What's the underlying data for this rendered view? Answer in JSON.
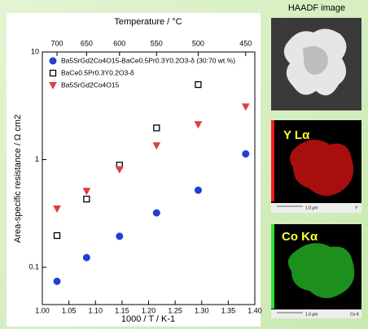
{
  "chart_data": {
    "type": "scatter",
    "xlabel": "1000 / T / K-1",
    "ylabel": "Area-specific resistance / Ω cm2",
    "x2label": "Temperature / °C",
    "x": [
      1.0276,
      1.0833,
      1.1453,
      1.215,
      1.2934,
      1.3828
    ],
    "series": [
      {
        "name": "Ba5SrGd2Co4O15-BaCe0.5Pr0.3Y0.2O3-δ (30:70 wt.%)",
        "color": "#1f3fd6",
        "marker": "circle",
        "filled": true,
        "values": [
          0.074,
          0.123,
          0.194,
          0.32,
          0.52,
          1.13
        ]
      },
      {
        "name": "BaCe0.5Pr0.3Y0.2O3-δ",
        "color": "#000000",
        "marker": "square",
        "filled": false,
        "values": [
          0.197,
          0.43,
          0.89,
          1.97,
          4.98,
          null
        ]
      },
      {
        "name": "Ba5SrGd2Co4O15",
        "color": "#d9413f",
        "marker": "triangle",
        "filled": true,
        "values": [
          0.35,
          0.51,
          0.81,
          1.35,
          2.12,
          3.1
        ]
      }
    ],
    "xlim": [
      1.0,
      1.4
    ],
    "xticks": [
      {
        "value": 1.0,
        "label": "1.00"
      },
      {
        "value": 1.05,
        "label": "1.05"
      },
      {
        "value": 1.1,
        "label": "1.10"
      },
      {
        "value": 1.15,
        "label": "1.15"
      },
      {
        "value": 1.2,
        "label": "1.20"
      },
      {
        "value": 1.25,
        "label": "1.25"
      },
      {
        "value": 1.3,
        "label": "1.30"
      },
      {
        "value": 1.35,
        "label": "1.35"
      },
      {
        "value": 1.4,
        "label": "1.40"
      }
    ],
    "x2ticks": [
      {
        "value": 1.0276,
        "label": "700"
      },
      {
        "value": 1.0833,
        "label": "650"
      },
      {
        "value": 1.1453,
        "label": "600"
      },
      {
        "value": 1.215,
        "label": "550"
      },
      {
        "value": 1.2934,
        "label": "500"
      },
      {
        "value": 1.3828,
        "label": "450"
      }
    ],
    "ylim": [
      0.045,
      10
    ],
    "yticks": [
      0.1,
      1,
      10
    ],
    "ylog": true,
    "legend": "upper-left"
  },
  "panels": [
    {
      "title": "HAADF image"
    },
    {
      "title": "Y Lα",
      "scale": "1.0 µm",
      "tag": "Y"
    },
    {
      "title": "Co Kα",
      "scale": "1.0 µm",
      "tag": "Co K"
    }
  ]
}
